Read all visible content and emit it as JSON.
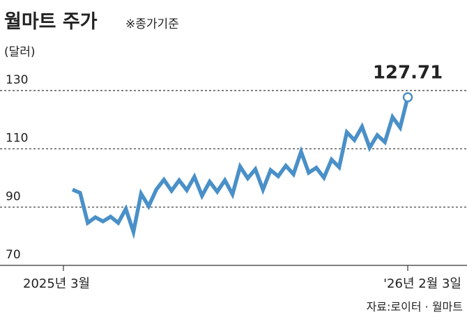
{
  "chart_data": {
    "type": "line",
    "title": "월마트 주가",
    "subtitle": "※종가기준",
    "y_label": "(달러)",
    "source": "자료:로이터 · 월마트",
    "categories": [
      "2025년 3월",
      null,
      null,
      null,
      null,
      null,
      null,
      null,
      null,
      null,
      null,
      null,
      null,
      null,
      null,
      null,
      null,
      null,
      null,
      null,
      null,
      null,
      null,
      null,
      null,
      null,
      null,
      null,
      null,
      null,
      null,
      null,
      null,
      null,
      null,
      null,
      null,
      null,
      null,
      null,
      null,
      null,
      null,
      null,
      "'26년 2월 3일"
    ],
    "series": [
      {
        "name": "월마트",
        "color": "#4a90c8",
        "values": [
          96.0,
          94.9,
          84.6,
          86.5,
          85.1,
          86.7,
          84.6,
          89.4,
          81.5,
          94.6,
          90.3,
          96.0,
          99.4,
          95.6,
          99.2,
          95.8,
          100.4,
          93.9,
          98.7,
          95.3,
          99.2,
          94.4,
          103.9,
          99.9,
          103.0,
          96.0,
          102.7,
          100.6,
          104.2,
          101.3,
          109.0,
          101.8,
          103.5,
          100.1,
          106.3,
          103.7,
          115.7,
          113.0,
          117.6,
          110.4,
          114.7,
          112.3,
          120.9,
          117.3,
          127.71
        ]
      }
    ],
    "ylim": [
      70,
      130
    ],
    "yticks": [
      70,
      90,
      110,
      130
    ],
    "grid": true
  }
}
